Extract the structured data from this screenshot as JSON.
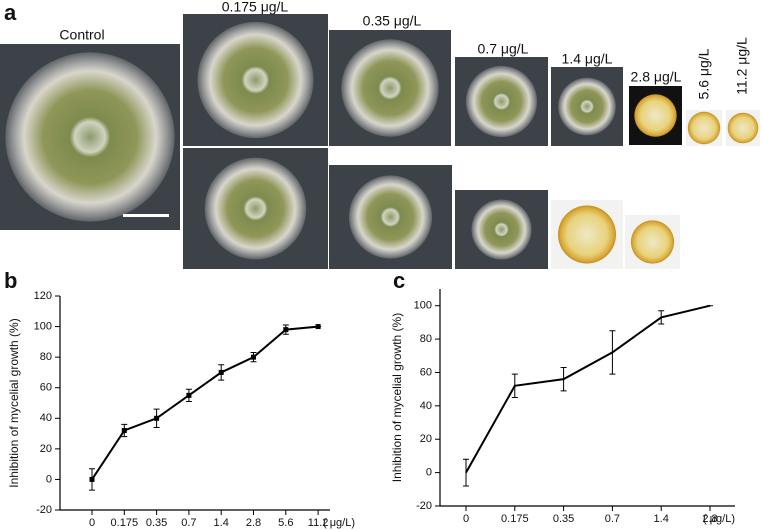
{
  "panel_labels": [
    "a",
    "b",
    "c"
  ],
  "photo_labels": [
    "Control",
    "0.175 μg/L",
    "0.35 μg/L",
    "0.7 μg/L",
    "1.4 μg/L",
    "2.8 μg/L",
    "5.6 μg/L",
    "11.2 μg/L"
  ],
  "chart_data": [
    {
      "type": "line",
      "y_label": "Inhibition of mycelial growth (%)",
      "x_unit": "( μg/L)",
      "categories": [
        "0",
        "0.175",
        "0.35",
        "0.7",
        "1.4",
        "2.8",
        "5.6",
        "11.2"
      ],
      "values": [
        0,
        32,
        40,
        55,
        70,
        80,
        98,
        100
      ],
      "errors": [
        7,
        4,
        6,
        4,
        5,
        3,
        3,
        0
      ],
      "color": "#000000",
      "marker": "square",
      "ylim": [
        -20,
        120
      ],
      "yticks": [
        -20,
        0,
        20,
        40,
        60,
        80,
        100,
        120
      ]
    },
    {
      "type": "line",
      "y_label": "Inhibition of mycelial growth (%)",
      "x_unit": "( μg/L)",
      "categories": [
        "0",
        "0.175",
        "0.35",
        "0.7",
        "1.4",
        "2.8"
      ],
      "values": [
        0,
        52,
        56,
        72,
        93,
        100
      ],
      "errors": [
        8,
        7,
        7,
        13,
        4,
        0
      ],
      "color": "#000000",
      "marker": "none",
      "ylim": [
        -20,
        110
      ],
      "yticks": [
        -20,
        0,
        20,
        40,
        60,
        80,
        100
      ]
    }
  ]
}
